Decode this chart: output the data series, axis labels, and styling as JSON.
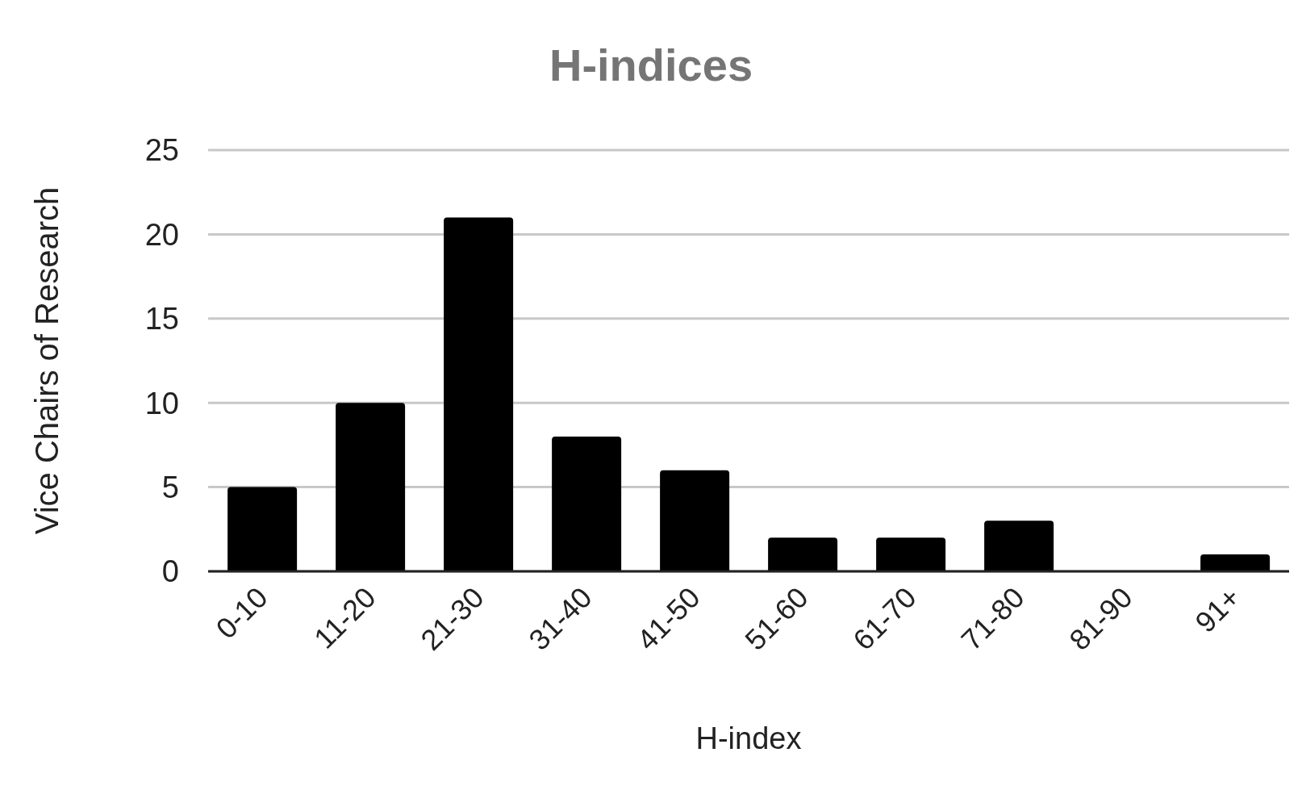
{
  "chart_data": {
    "type": "bar",
    "title": "H-indices",
    "xlabel": "H-index",
    "ylabel": "Vice Chairs of Research",
    "categories": [
      "0-10",
      "11-20",
      "21-30",
      "31-40",
      "41-50",
      "51-60",
      "61-70",
      "71-80",
      "81-90",
      "91+"
    ],
    "values": [
      5,
      10,
      21,
      8,
      6,
      2,
      2,
      3,
      0,
      1
    ],
    "color": "#000000",
    "ylim": [
      0,
      25
    ],
    "yticks": [
      0,
      5,
      10,
      15,
      20,
      25
    ],
    "grid": "y"
  }
}
